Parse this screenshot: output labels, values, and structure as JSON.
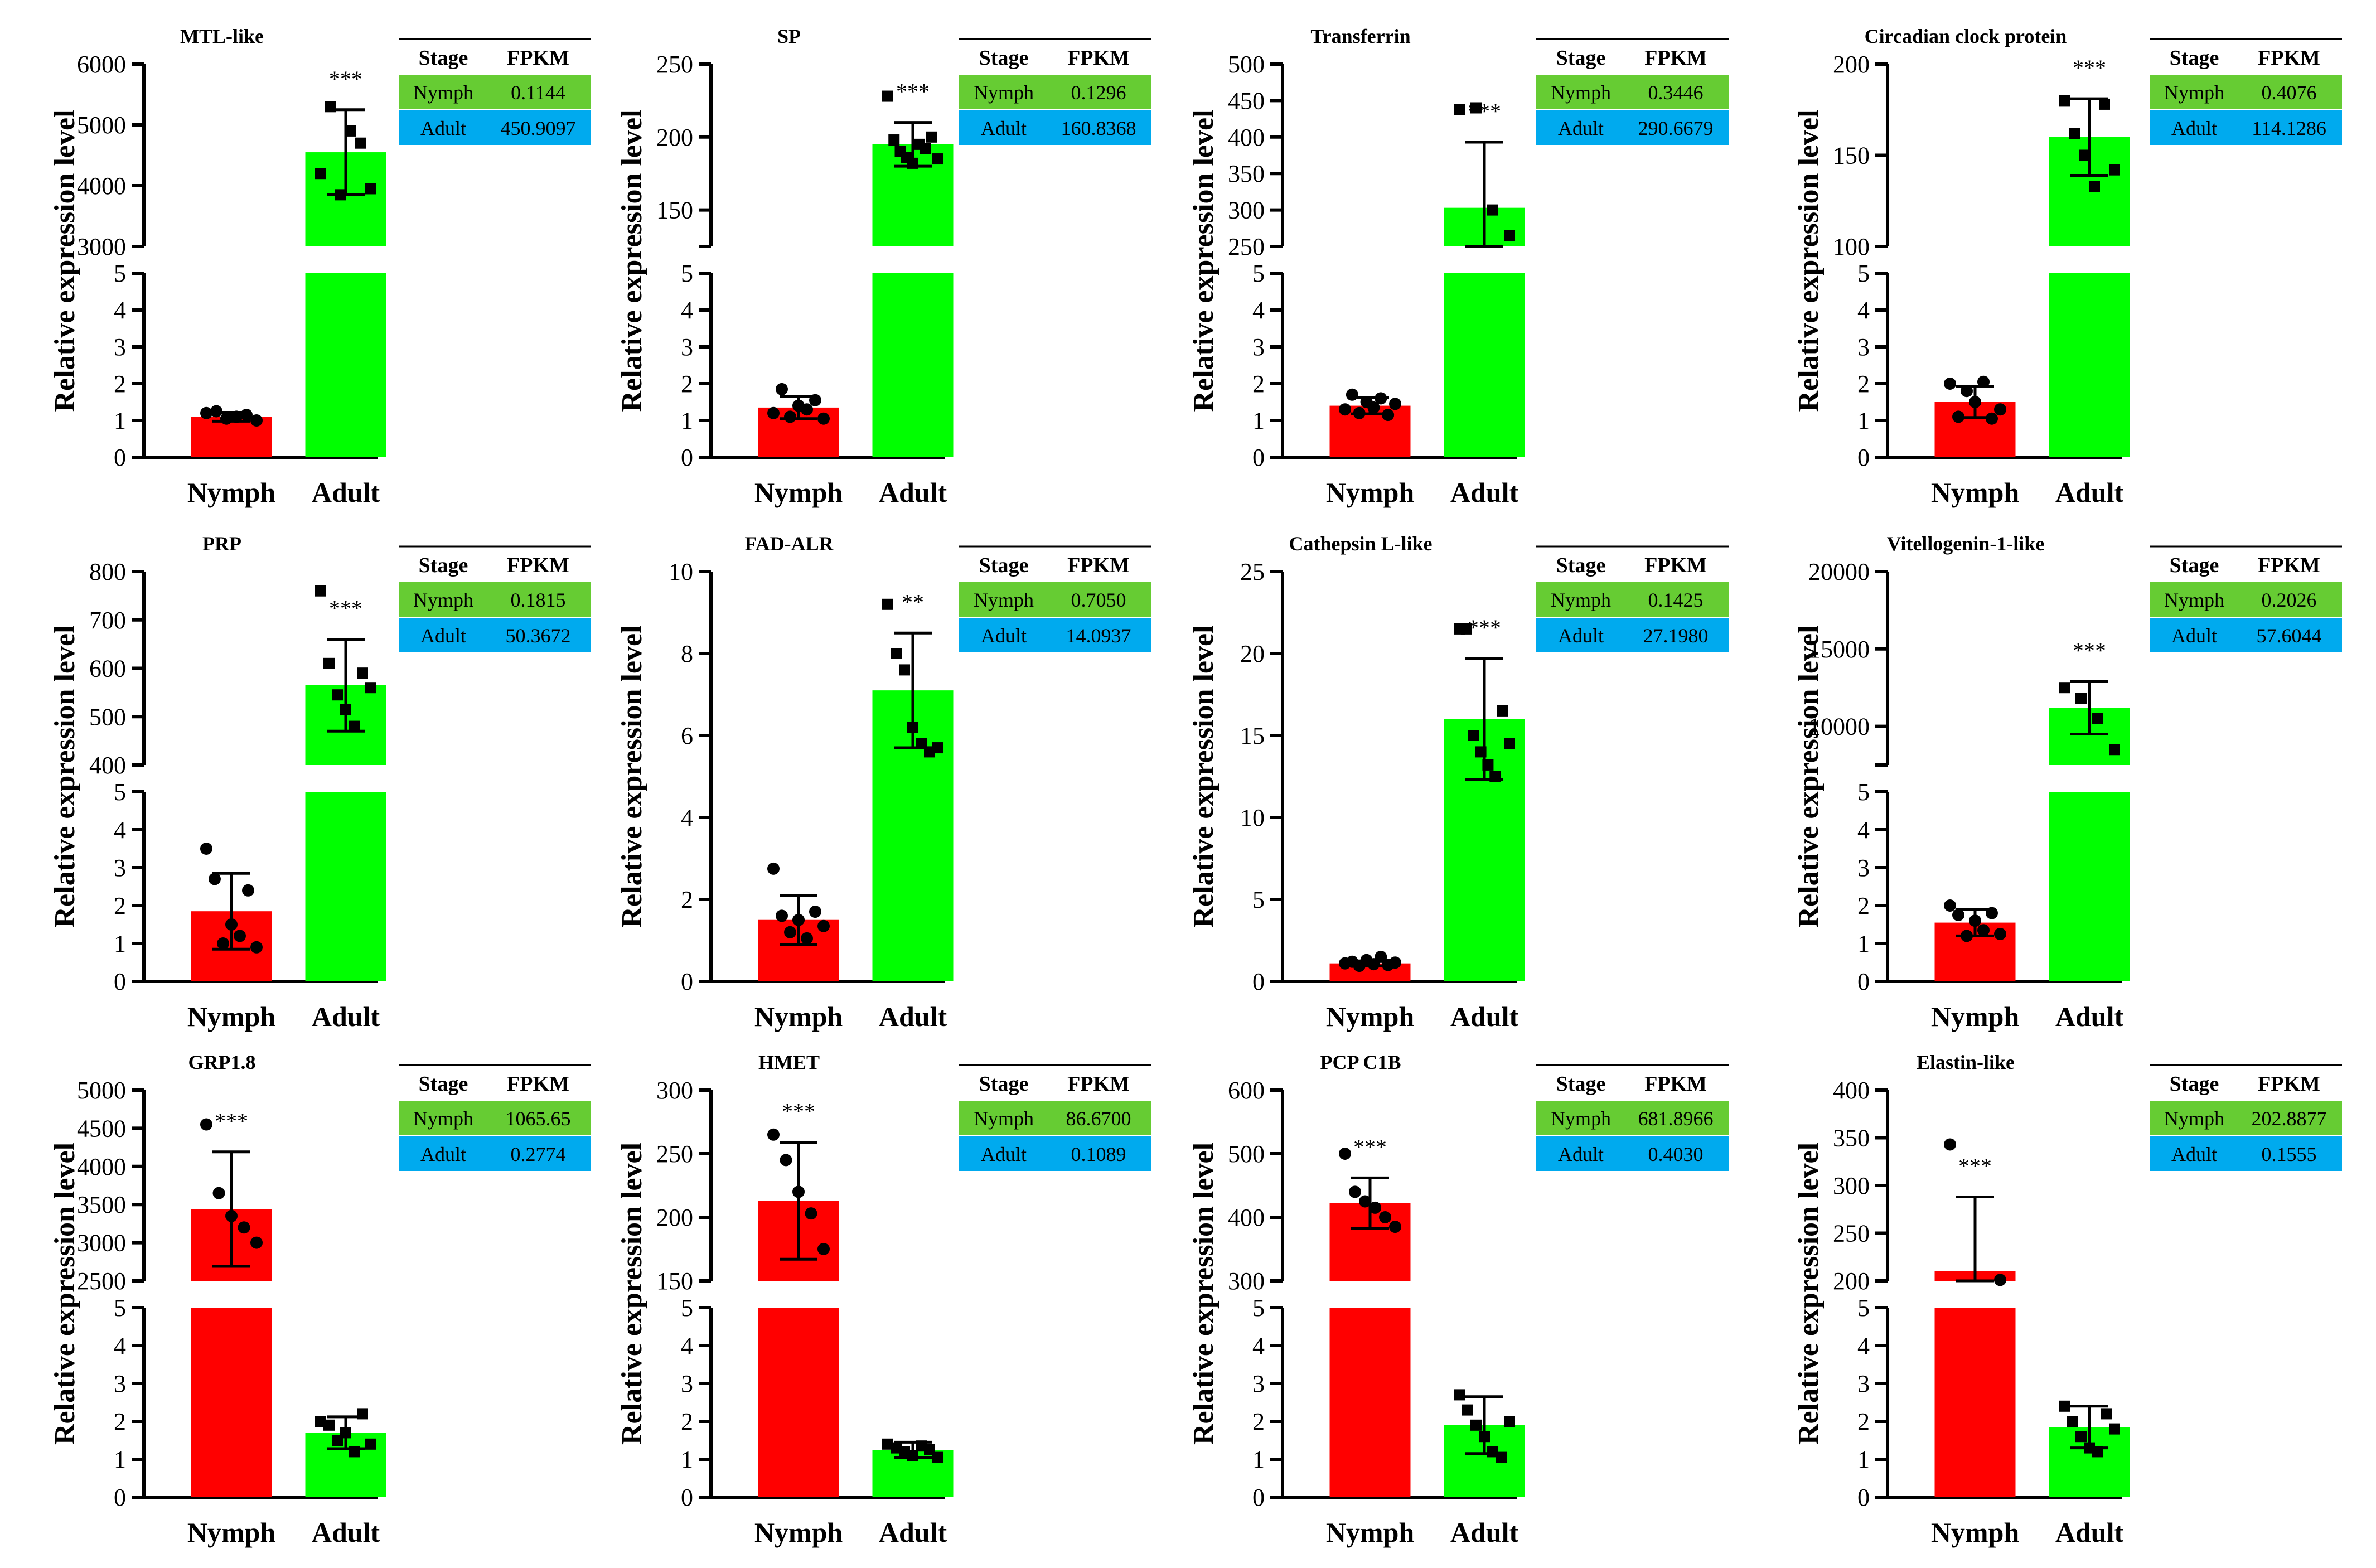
{
  "figure": {
    "y_axis_label": "Relative  expression level",
    "x_categories": [
      "Nymph",
      "Adult"
    ],
    "fpkm_header": [
      "Stage",
      "FPKM"
    ],
    "colors": {
      "nymph": "#ff0000",
      "adult": "#00ff00",
      "table_nymph": "#66cc33",
      "table_adult": "#00aaee"
    }
  },
  "chart_data": [
    {
      "type": "bar",
      "title": "MTL-like",
      "categories": [
        "Nymph",
        "Adult"
      ],
      "values": [
        1.1,
        4550
      ],
      "error": [
        0.12,
        700
      ],
      "significance": "***",
      "lower_ylim": [
        0,
        5
      ],
      "lower_ticks": [
        0,
        1,
        2,
        3,
        4,
        5
      ],
      "upper_ylim": [
        3000,
        6000
      ],
      "upper_ticks": [
        3000,
        4000,
        5000,
        6000
      ],
      "marker_nymph": "circle",
      "marker_adult": "square",
      "points": [
        [
          1.2,
          1.25,
          1.05,
          1.1,
          1.15,
          1.0
        ],
        [
          4200,
          5300,
          3850,
          4900,
          4700,
          3950
        ]
      ],
      "fpkm": [
        [
          "Nymph",
          "0.1144"
        ],
        [
          "Adult",
          "450.9097"
        ]
      ]
    },
    {
      "type": "bar",
      "title": "SP",
      "categories": [
        "Nymph",
        "Adult"
      ],
      "values": [
        1.35,
        195
      ],
      "error": [
        0.3,
        15
      ],
      "significance": "***",
      "lower_ylim": [
        0,
        5
      ],
      "lower_ticks": [
        0,
        1,
        2,
        3,
        4,
        5
      ],
      "upper_ylim": [
        125,
        250
      ],
      "upper_ticks": [
        150,
        200,
        250
      ],
      "marker_nymph": "circle",
      "marker_adult": "square",
      "points": [
        [
          1.2,
          1.85,
          1.1,
          1.4,
          1.3,
          1.55,
          1.05
        ],
        [
          228,
          198,
          190,
          186,
          182,
          195,
          192,
          200,
          185
        ]
      ],
      "fpkm": [
        [
          "Nymph",
          "0.1296"
        ],
        [
          "Adult",
          "160.8368"
        ]
      ]
    },
    {
      "type": "bar",
      "title": "Transferrin",
      "categories": [
        "Nymph",
        "Adult"
      ],
      "values": [
        1.4,
        303
      ],
      "error": [
        0.22,
        90
      ],
      "significance": "***",
      "lower_ylim": [
        0,
        5
      ],
      "lower_ticks": [
        0,
        1,
        2,
        3,
        4,
        5
      ],
      "upper_ylim": [
        250,
        500
      ],
      "upper_ticks": [
        250,
        300,
        350,
        400,
        450,
        500
      ],
      "marker_nymph": "circle",
      "marker_adult": "square",
      "points": [
        [
          1.3,
          1.7,
          1.2,
          1.5,
          1.35,
          1.6,
          1.15,
          1.45
        ],
        [
          438,
          440,
          300,
          265
        ]
      ],
      "fpkm": [
        [
          "Nymph",
          "0.3446"
        ],
        [
          "Adult",
          "290.6679"
        ]
      ]
    },
    {
      "type": "bar",
      "title": "Circadian clock protein",
      "categories": [
        "Nymph",
        "Adult"
      ],
      "values": [
        1.5,
        160
      ],
      "error": [
        0.42,
        21
      ],
      "significance": "***",
      "lower_ylim": [
        0,
        5
      ],
      "lower_ticks": [
        0,
        1,
        2,
        3,
        4,
        5
      ],
      "upper_ylim": [
        100,
        200
      ],
      "upper_ticks": [
        100,
        150,
        200
      ],
      "marker_nymph": "circle",
      "marker_adult": "square",
      "points": [
        [
          2.0,
          1.1,
          1.8,
          1.5,
          2.05,
          1.05,
          1.3
        ],
        [
          180,
          162,
          150,
          133,
          178,
          142
        ]
      ],
      "fpkm": [
        [
          "Nymph",
          "0.4076"
        ],
        [
          "Adult",
          "114.1286"
        ]
      ]
    },
    {
      "type": "bar",
      "title": "PRP",
      "categories": [
        "Nymph",
        "Adult"
      ],
      "values": [
        1.85,
        565
      ],
      "error": [
        1.0,
        95
      ],
      "significance": "***",
      "lower_ylim": [
        0,
        5
      ],
      "lower_ticks": [
        0,
        1,
        2,
        3,
        4,
        5
      ],
      "upper_ylim": [
        400,
        800
      ],
      "upper_ticks": [
        400,
        500,
        600,
        700,
        800
      ],
      "marker_nymph": "circle",
      "marker_adult": "square",
      "points": [
        [
          3.5,
          2.7,
          1.0,
          1.5,
          1.2,
          2.4,
          0.9
        ],
        [
          760,
          610,
          545,
          515,
          480,
          590,
          560
        ]
      ],
      "fpkm": [
        [
          "Nymph",
          "0.1815"
        ],
        [
          "Adult",
          "50.3672"
        ]
      ]
    },
    {
      "type": "bar",
      "title": "FAD-ALR",
      "categories": [
        "Nymph",
        "Adult"
      ],
      "values": [
        1.5,
        7.1
      ],
      "error": [
        0.6,
        1.4
      ],
      "significance": "**",
      "lower_ylim": [
        0,
        10
      ],
      "lower_ticks": [
        0,
        2,
        4,
        6,
        8,
        10
      ],
      "upper_ylim": null,
      "upper_ticks": null,
      "marker_nymph": "circle",
      "marker_adult": "square",
      "points": [
        [
          2.75,
          1.6,
          1.2,
          1.5,
          1.05,
          1.7,
          1.35
        ],
        [
          9.2,
          8.0,
          7.6,
          6.2,
          5.8,
          5.6,
          5.7
        ]
      ],
      "fpkm": [
        [
          "Nymph",
          "0.7050"
        ],
        [
          "Adult",
          "14.0937"
        ]
      ]
    },
    {
      "type": "bar",
      "title": "Cathepsin L-like",
      "categories": [
        "Nymph",
        "Adult"
      ],
      "values": [
        1.1,
        16
      ],
      "error": [
        0.15,
        3.7
      ],
      "significance": "***",
      "lower_ylim": [
        0,
        25
      ],
      "lower_ticks": [
        0,
        5,
        10,
        15,
        20,
        25
      ],
      "upper_ylim": null,
      "upper_ticks": null,
      "marker_nymph": "circle",
      "marker_adult": "square",
      "points": [
        [
          1.1,
          1.2,
          0.95,
          1.3,
          1.05,
          1.5,
          1.0,
          1.15
        ],
        [
          21.5,
          21.5,
          15,
          14,
          13.2,
          12.5,
          16.5,
          14.5
        ]
      ],
      "fpkm": [
        [
          "Nymph",
          "0.1425"
        ],
        [
          "Adult",
          "27.1980"
        ]
      ]
    },
    {
      "type": "bar",
      "title": "Vitellogenin-1-like",
      "categories": [
        "Nymph",
        "Adult"
      ],
      "values": [
        1.55,
        11200
      ],
      "error": [
        0.35,
        1700
      ],
      "significance": "***",
      "lower_ylim": [
        0,
        5
      ],
      "lower_ticks": [
        0,
        1,
        2,
        3,
        4,
        5
      ],
      "upper_ylim": [
        7500,
        20000
      ],
      "upper_ticks": [
        10000,
        15000,
        20000
      ],
      "marker_nymph": "circle",
      "marker_adult": "square",
      "points": [
        [
          2.0,
          1.75,
          1.2,
          1.6,
          1.35,
          1.8,
          1.25
        ],
        [
          12500,
          11800,
          10500,
          8500
        ]
      ],
      "fpkm": [
        [
          "Nymph",
          "0.2026"
        ],
        [
          "Adult",
          "57.6044"
        ]
      ]
    },
    {
      "type": "bar",
      "title": "GRP1.8",
      "categories": [
        "Nymph",
        "Adult"
      ],
      "values": [
        3440,
        1.7
      ],
      "error": [
        750,
        0.42
      ],
      "significance": "***",
      "lower_ylim": [
        0,
        5
      ],
      "lower_ticks": [
        0,
        1,
        2,
        3,
        4,
        5
      ],
      "upper_ylim": [
        2500,
        5000
      ],
      "upper_ticks": [
        2500,
        3000,
        3500,
        4000,
        4500,
        5000
      ],
      "marker_nymph": "circle",
      "marker_adult": "square",
      "points": [
        [
          4550,
          3650,
          3350,
          3200,
          3000
        ],
        [
          2.0,
          1.9,
          1.5,
          1.7,
          1.2,
          2.2,
          1.4
        ]
      ],
      "fpkm": [
        [
          "Nymph",
          "1065.65"
        ],
        [
          "Adult",
          "0.2774"
        ]
      ]
    },
    {
      "type": "bar",
      "title": "HMET",
      "categories": [
        "Nymph",
        "Adult"
      ],
      "values": [
        213,
        1.25
      ],
      "error": [
        46,
        0.2
      ],
      "significance": "***",
      "lower_ylim": [
        0,
        5
      ],
      "lower_ticks": [
        0,
        1,
        2,
        3,
        4,
        5
      ],
      "upper_ylim": [
        150,
        300
      ],
      "upper_ticks": [
        150,
        200,
        250,
        300
      ],
      "marker_nymph": "circle",
      "marker_adult": "square",
      "points": [
        [
          265,
          245,
          220,
          203,
          175
        ],
        [
          1.4,
          1.3,
          1.2,
          1.1,
          1.35,
          1.25,
          1.05
        ]
      ],
      "fpkm": [
        [
          "Nymph",
          "86.6700"
        ],
        [
          "Adult",
          "0.1089"
        ]
      ]
    },
    {
      "type": "bar",
      "title": "PCP C1B",
      "categories": [
        "Nymph",
        "Adult"
      ],
      "values": [
        422,
        1.9
      ],
      "error": [
        40,
        0.75
      ],
      "significance": "***",
      "lower_ylim": [
        0,
        5
      ],
      "lower_ticks": [
        0,
        1,
        2,
        3,
        4,
        5
      ],
      "upper_ylim": [
        300,
        600
      ],
      "upper_ticks": [
        300,
        400,
        500,
        600
      ],
      "marker_nymph": "circle",
      "marker_adult": "square",
      "points": [
        [
          500,
          440,
          425,
          415,
          400,
          385
        ],
        [
          2.7,
          2.3,
          1.9,
          1.6,
          1.2,
          1.05,
          2.0
        ]
      ],
      "fpkm": [
        [
          "Nymph",
          "681.8966"
        ],
        [
          "Adult",
          "0.4030"
        ]
      ]
    },
    {
      "type": "bar",
      "title": "Elastin-like",
      "categories": [
        "Nymph",
        "Adult"
      ],
      "values": [
        210,
        1.85
      ],
      "error": [
        78,
        0.55
      ],
      "significance": "***",
      "lower_ylim": [
        0,
        5
      ],
      "lower_ticks": [
        0,
        1,
        2,
        3,
        4,
        5
      ],
      "upper_ylim": [
        200,
        400
      ],
      "upper_ticks": [
        200,
        250,
        300,
        350,
        400
      ],
      "marker_nymph": "circle",
      "marker_adult": "square",
      "points": [
        [
          343,
          201
        ],
        [
          2.4,
          2.0,
          1.6,
          1.3,
          1.2,
          2.2,
          1.8
        ]
      ],
      "fpkm": [
        [
          "Nymph",
          "202.8877"
        ],
        [
          "Adult",
          "0.1555"
        ]
      ]
    }
  ]
}
